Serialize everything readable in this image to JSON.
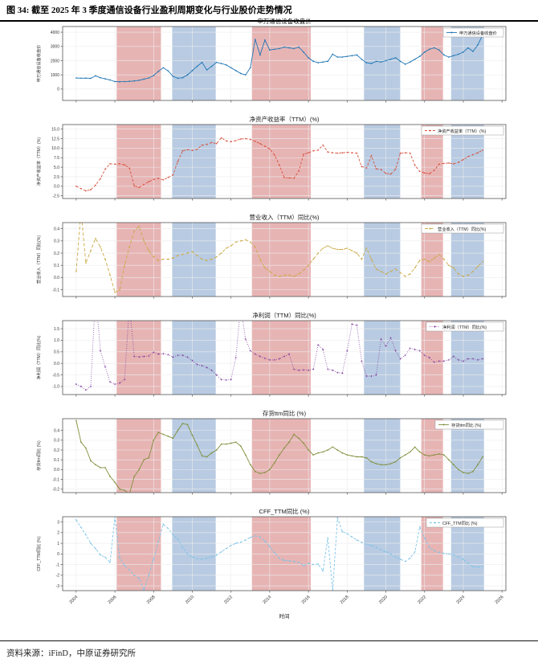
{
  "header": {
    "title": "图 34: 截至 2025 年 3 季度通信设备行业盈利周期变化与行业股价走势情况"
  },
  "footer": {
    "source": "资料来源：iFinD，中原证券研究所"
  },
  "chart_data": {
    "type": "line",
    "x_domain": [
      2003.3,
      2026.2
    ],
    "x_ticks": [
      2004,
      2006,
      2008,
      2010,
      2012,
      2014,
      2016,
      2018,
      2020,
      2022,
      2024,
      2026
    ],
    "x_tick_labels": [
      "2004",
      "2006",
      "2008",
      "2010",
      "2012",
      "2014",
      "2016",
      "2018",
      "2020",
      "2022",
      "2024",
      "2026"
    ],
    "x_label": "时间",
    "x_start": 2004.0,
    "x_step": 0.25,
    "grid": true,
    "band_colors": {
      "red": "rgba(202,88,88,0.45)",
      "blue": "rgba(98,140,190,0.45)"
    },
    "bands": [
      {
        "x0": 2006.09,
        "x1": 2008.38,
        "color": "red"
      },
      {
        "x0": 2008.96,
        "x1": 2011.21,
        "color": "blue"
      },
      {
        "x0": 2013.08,
        "x1": 2016.12,
        "color": "red"
      },
      {
        "x0": 2018.87,
        "x1": 2020.74,
        "color": "blue"
      },
      {
        "x0": 2021.83,
        "x1": 2022.95,
        "color": "red"
      },
      {
        "x0": 2023.37,
        "x1": 2025.07,
        "color": "blue"
      }
    ],
    "panels": [
      {
        "title": "申万通信设备收盘价",
        "ylabel": "申万通信设备收盘价",
        "legend": "申万通信设备收盘价",
        "color": "#1f77b4",
        "dash": "",
        "marker": "dot",
        "ylim": [
          -800,
          4400
        ],
        "yticks": [
          0,
          1000,
          2000,
          3000,
          4000
        ],
        "ytick_labels": [
          "0",
          "1000",
          "2000",
          "3000",
          "4000"
        ],
        "values": [
          780,
          765,
          770,
          755,
          930,
          800,
          720,
          640,
          530,
          515,
          525,
          545,
          570,
          620,
          700,
          780,
          950,
          1250,
          1500,
          1280,
          900,
          760,
          800,
          1000,
          1300,
          1600,
          1880,
          1350,
          1600,
          1880,
          1800,
          1700,
          1500,
          1300,
          1100,
          1000,
          1500,
          3500,
          2400,
          3450,
          2750,
          2800,
          2850,
          2950,
          2900,
          2850,
          2950,
          2600,
          2200,
          1950,
          1850,
          1900,
          1950,
          2450,
          2250,
          2250,
          2300,
          2350,
          2400,
          2100,
          1850,
          1800,
          1950,
          1900,
          2000,
          2100,
          2200,
          1950,
          1750,
          1900,
          2100,
          2300,
          2600,
          2800,
          2900,
          2750,
          2400,
          2250,
          2350,
          2450,
          2600,
          2900,
          2650,
          3100,
          3800
        ]
      },
      {
        "title": "净资产收益率（TTM）(%)",
        "ylabel": "净资产收益率（TTM）(%)",
        "legend": "净资产收益率（TTM）(%)",
        "color": "#d9533f",
        "dash": "3,2",
        "marker": "dot",
        "ylim": [
          -3.2,
          16.2
        ],
        "yticks": [
          -2.5,
          0.0,
          2.5,
          5.0,
          7.5,
          10.0,
          12.5,
          15.0
        ],
        "ytick_labels": [
          "-2.5",
          "0.0",
          "2.5",
          "5.0",
          "7.5",
          "10.0",
          "12.5",
          "15.0"
        ],
        "values": [
          0.0,
          -0.6,
          -1.2,
          -0.9,
          0.3,
          2.0,
          4.5,
          5.9,
          5.8,
          5.9,
          5.6,
          4.8,
          0.1,
          -0.3,
          0.5,
          1.2,
          1.8,
          2.1,
          1.7,
          2.3,
          3.0,
          6.5,
          9.3,
          9.6,
          9.4,
          9.7,
          10.8,
          11.0,
          11.5,
          11.2,
          12.7,
          11.9,
          11.7,
          12.0,
          12.4,
          12.5,
          12.3,
          11.8,
          11.2,
          10.5,
          9.8,
          8.2,
          5.5,
          2.3,
          2.2,
          2.1,
          4.0,
          8.4,
          8.8,
          9.3,
          9.5,
          10.8,
          9.0,
          8.8,
          8.7,
          8.8,
          8.9,
          8.8,
          8.7,
          5.2,
          4.8,
          8.0,
          4.6,
          4.4,
          3.4,
          3.2,
          4.5,
          8.7,
          8.8,
          8.7,
          5.5,
          3.9,
          3.5,
          3.3,
          4.2,
          5.8,
          6.0,
          6.1,
          5.9,
          6.3,
          7.0,
          7.8,
          8.3,
          8.8,
          9.5
        ]
      },
      {
        "title": "营业收入（TTM）同比(%)",
        "ylabel": "营业收入（TTM）同比(%)",
        "legend": "营业收入（TTM）同比(%)",
        "color": "#ccaa44",
        "dash": "4,2.5",
        "marker": "dot",
        "ylim": [
          -0.155,
          0.45
        ],
        "yticks": [
          -0.1,
          0.0,
          0.1,
          0.2,
          0.3,
          0.4
        ],
        "ytick_labels": [
          "-0.1",
          "0.0",
          "0.1",
          "0.2",
          "0.3",
          "0.4"
        ],
        "values": [
          0.05,
          0.55,
          0.12,
          0.22,
          0.32,
          0.25,
          0.15,
          0.02,
          -0.12,
          -0.1,
          0.1,
          0.25,
          0.38,
          0.42,
          0.3,
          0.22,
          0.17,
          0.14,
          0.15,
          0.15,
          0.16,
          0.18,
          0.19,
          0.2,
          0.21,
          0.18,
          0.15,
          0.14,
          0.15,
          0.17,
          0.2,
          0.24,
          0.26,
          0.29,
          0.3,
          0.31,
          0.29,
          0.25,
          0.15,
          0.08,
          0.05,
          0.02,
          0.01,
          0.02,
          0.02,
          0.01,
          0.03,
          0.06,
          0.1,
          0.15,
          0.2,
          0.24,
          0.26,
          0.24,
          0.23,
          0.23,
          0.24,
          0.22,
          0.2,
          0.15,
          0.24,
          0.15,
          0.07,
          0.05,
          0.03,
          0.05,
          0.07,
          0.04,
          0.01,
          0.03,
          0.08,
          0.14,
          0.15,
          0.13,
          0.16,
          0.19,
          0.15,
          0.1,
          0.08,
          0.03,
          0.01,
          0.02,
          0.05,
          0.09,
          0.13
        ]
      },
      {
        "title": "净利润（TTM）同比(%)",
        "ylabel": "净利润（TTM）同比(%)",
        "legend": "净利润（TTM）同比(%)",
        "color": "#7d3c9e",
        "dash": "0.8,1.8",
        "marker": "plus",
        "ylim": [
          -1.35,
          1.85
        ],
        "yticks": [
          -1.0,
          -0.5,
          0.0,
          0.5,
          1.0,
          1.5
        ],
        "ytick_labels": [
          "-1.0",
          "-0.5",
          "0.0",
          "0.5",
          "1.0",
          "1.5"
        ],
        "values": [
          -0.9,
          -1.0,
          -1.15,
          -1.0,
          3.0,
          0.55,
          -0.15,
          -0.8,
          -0.9,
          -0.85,
          -0.7,
          2.5,
          0.3,
          0.28,
          0.3,
          0.32,
          0.48,
          0.4,
          0.42,
          0.38,
          0.27,
          0.35,
          0.35,
          0.27,
          0.12,
          -0.05,
          -0.1,
          -0.18,
          -0.3,
          -0.5,
          -0.7,
          -0.72,
          -0.7,
          0.25,
          2.5,
          1.05,
          0.55,
          0.4,
          0.3,
          0.22,
          0.15,
          0.15,
          0.2,
          0.3,
          0.4,
          -0.25,
          -0.3,
          -0.28,
          -0.3,
          -0.25,
          0.8,
          0.6,
          -0.25,
          -0.3,
          -0.4,
          -0.42,
          0.55,
          1.7,
          1.65,
          0.1,
          -0.55,
          -0.55,
          -0.5,
          1.05,
          0.75,
          1.1,
          0.55,
          0.2,
          0.35,
          0.65,
          0.6,
          0.55,
          0.35,
          0.25,
          0.05,
          0.1,
          0.1,
          0.15,
          0.3,
          0.15,
          0.1,
          0.2,
          0.2,
          0.15,
          0.2
        ]
      },
      {
        "title": "存货ttm同比 (%)",
        "ylabel": "存货ttm同比 (%)",
        "legend": "存货ttm同比 (%)",
        "color": "#7f8f3b",
        "dash": "",
        "marker": "dot",
        "ylim": [
          -0.235,
          0.52
        ],
        "yticks": [
          -0.2,
          -0.1,
          0.0,
          0.1,
          0.2,
          0.3,
          0.4
        ],
        "ytick_labels": [
          "-0.2",
          "-0.1",
          "0.0",
          "0.1",
          "0.2",
          "0.3",
          "0.4"
        ],
        "values": [
          0.5,
          0.28,
          0.22,
          0.09,
          0.05,
          0.02,
          0.02,
          -0.07,
          -0.13,
          -0.2,
          -0.21,
          -0.25,
          -0.07,
          0.0,
          0.1,
          0.12,
          0.3,
          0.38,
          0.36,
          0.34,
          0.32,
          0.4,
          0.47,
          0.46,
          0.35,
          0.25,
          0.14,
          0.13,
          0.17,
          0.2,
          0.26,
          0.26,
          0.27,
          0.28,
          0.24,
          0.15,
          0.05,
          -0.02,
          -0.04,
          -0.03,
          0.0,
          0.07,
          0.15,
          0.22,
          0.28,
          0.36,
          0.32,
          0.27,
          0.2,
          0.15,
          0.17,
          0.18,
          0.2,
          0.23,
          0.2,
          0.17,
          0.15,
          0.14,
          0.13,
          0.13,
          0.12,
          0.08,
          0.06,
          0.05,
          0.05,
          0.06,
          0.08,
          0.12,
          0.15,
          0.18,
          0.23,
          0.18,
          0.15,
          0.14,
          0.15,
          0.16,
          0.15,
          0.1,
          0.05,
          0.0,
          -0.03,
          -0.04,
          -0.02,
          0.05,
          0.13
        ]
      },
      {
        "title": "CFF_TTM同比 (%)",
        "ylabel": "CFF_TTM同比 (%)",
        "legend": "CFF_TTM同比 (%)",
        "color": "#7ec4e8",
        "dash": "3,2",
        "marker": "dot",
        "ylim": [
          -3.45,
          3.5
        ],
        "yticks": [
          -3,
          -2,
          -1,
          0,
          1,
          2,
          3
        ],
        "ytick_labels": [
          "-3",
          "-2",
          "-1",
          "0",
          "1",
          "2",
          "3"
        ],
        "values": [
          3.2,
          2.5,
          1.8,
          1.0,
          0.5,
          -0.1,
          -0.3,
          -0.8,
          3.5,
          -0.4,
          -1.1,
          -1.5,
          -2.0,
          -2.3,
          -3.4,
          -2.0,
          -0.5,
          1.2,
          2.8,
          2.4,
          1.8,
          1.4,
          0.6,
          0.0,
          -0.3,
          -0.45,
          -0.5,
          -0.4,
          -0.3,
          -0.1,
          0.2,
          0.5,
          0.8,
          1.0,
          1.1,
          1.3,
          1.55,
          1.7,
          1.6,
          1.2,
          0.7,
          0.1,
          -0.4,
          -0.6,
          -0.65,
          -0.7,
          -0.8,
          -1.1,
          -0.9,
          -1.0,
          -0.95,
          -1.6,
          1.5,
          -3.4,
          3.4,
          2.1,
          1.9,
          1.6,
          1.3,
          1.1,
          0.9,
          0.8,
          0.6,
          0.4,
          0.2,
          0.0,
          -0.3,
          -0.5,
          -0.7,
          -0.4,
          0.2,
          2.55,
          1.5,
          0.6,
          0.3,
          0.15,
          0.05,
          0.0,
          -0.05,
          -0.3,
          -0.5,
          -0.9,
          -1.2,
          -1.25,
          -1.15
        ]
      }
    ]
  }
}
